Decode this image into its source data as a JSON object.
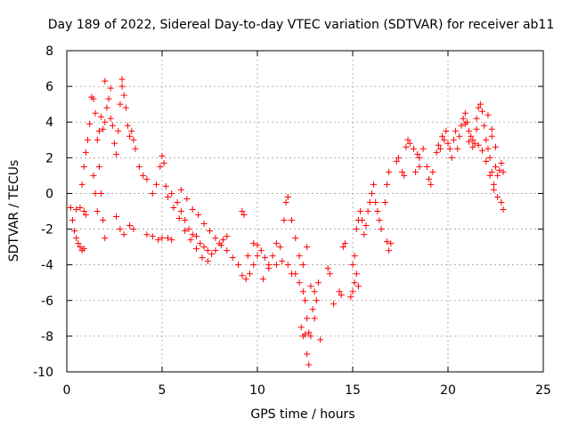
{
  "chart_data": {
    "type": "scatter",
    "title": "Day 189 of 2022, Sidereal Day-to-day VTEC variation (SDTVAR) for receiver ab11",
    "xlabel": "GPS time / hours",
    "ylabel": "SDTVAR / TECUs",
    "xlim": [
      0,
      25
    ],
    "ylim": [
      -10,
      8
    ],
    "xticks": [
      0,
      5,
      10,
      15,
      20,
      25
    ],
    "yticks": [
      -10,
      -8,
      -6,
      -4,
      -2,
      0,
      2,
      4,
      6,
      8
    ],
    "grid": true,
    "marker": "+",
    "series": [
      {
        "name": "SDTVAR",
        "color": "#ff0000",
        "points": [
          [
            0.2,
            -0.8
          ],
          [
            0.3,
            -1.5
          ],
          [
            0.4,
            -2.1
          ],
          [
            0.5,
            -2.5
          ],
          [
            0.6,
            -2.8
          ],
          [
            0.7,
            -3.0
          ],
          [
            0.8,
            -3.2
          ],
          [
            0.9,
            -3.1
          ],
          [
            0.5,
            -0.9
          ],
          [
            0.7,
            -0.8
          ],
          [
            0.9,
            -1.0
          ],
          [
            1.0,
            -1.2
          ],
          [
            0.8,
            0.5
          ],
          [
            0.9,
            1.5
          ],
          [
            1.0,
            2.3
          ],
          [
            1.1,
            3.0
          ],
          [
            1.2,
            3.9
          ],
          [
            1.3,
            5.4
          ],
          [
            1.4,
            5.3
          ],
          [
            1.5,
            4.5
          ],
          [
            1.6,
            3.0
          ],
          [
            1.7,
            1.5
          ],
          [
            1.8,
            0.0
          ],
          [
            1.9,
            -1.5
          ],
          [
            2.0,
            -2.5
          ],
          [
            1.4,
            1.0
          ],
          [
            1.5,
            0.0
          ],
          [
            1.6,
            -1.0
          ],
          [
            1.7,
            3.5
          ],
          [
            1.8,
            4.3
          ],
          [
            1.9,
            3.6
          ],
          [
            2.0,
            4.0
          ],
          [
            2.1,
            4.8
          ],
          [
            2.2,
            5.3
          ],
          [
            2.3,
            4.2
          ],
          [
            2.4,
            3.8
          ],
          [
            2.5,
            2.8
          ],
          [
            2.6,
            2.2
          ],
          [
            2.7,
            3.5
          ],
          [
            2.8,
            5.0
          ],
          [
            2.9,
            6.0
          ],
          [
            3.0,
            5.5
          ],
          [
            3.1,
            4.8
          ],
          [
            3.2,
            3.8
          ],
          [
            3.3,
            3.2
          ],
          [
            3.4,
            3.5
          ],
          [
            3.5,
            3.0
          ],
          [
            3.6,
            2.5
          ],
          [
            2.0,
            6.3
          ],
          [
            2.3,
            5.9
          ],
          [
            2.9,
            6.4
          ],
          [
            2.6,
            -1.3
          ],
          [
            2.8,
            -2.0
          ],
          [
            3.0,
            -2.3
          ],
          [
            3.3,
            -1.8
          ],
          [
            3.5,
            -2.0
          ],
          [
            3.8,
            1.5
          ],
          [
            4.0,
            1.0
          ],
          [
            4.2,
            0.8
          ],
          [
            4.5,
            0.0
          ],
          [
            4.7,
            0.5
          ],
          [
            4.9,
            1.5
          ],
          [
            5.0,
            2.1
          ],
          [
            5.1,
            1.7
          ],
          [
            4.2,
            -2.3
          ],
          [
            4.5,
            -2.4
          ],
          [
            4.8,
            -2.6
          ],
          [
            5.0,
            -2.5
          ],
          [
            5.3,
            -2.5
          ],
          [
            5.5,
            -2.6
          ],
          [
            5.2,
            0.4
          ],
          [
            5.5,
            0.0
          ],
          [
            5.8,
            -0.5
          ],
          [
            6.0,
            -1.0
          ],
          [
            6.2,
            -1.5
          ],
          [
            6.4,
            -2.0
          ],
          [
            6.6,
            -2.3
          ],
          [
            6.8,
            -2.4
          ],
          [
            7.0,
            -2.8
          ],
          [
            7.2,
            -3.0
          ],
          [
            7.4,
            -3.2
          ],
          [
            7.6,
            -3.4
          ],
          [
            7.8,
            -3.2
          ],
          [
            8.0,
            -2.8
          ],
          [
            8.2,
            -2.6
          ],
          [
            8.4,
            -2.4
          ],
          [
            5.3,
            -0.2
          ],
          [
            5.6,
            -0.8
          ],
          [
            5.9,
            -1.4
          ],
          [
            6.2,
            -2.1
          ],
          [
            6.5,
            -2.6
          ],
          [
            6.8,
            -3.1
          ],
          [
            7.1,
            -3.6
          ],
          [
            7.4,
            -3.8
          ],
          [
            6.0,
            0.2
          ],
          [
            6.3,
            -0.3
          ],
          [
            6.6,
            -0.9
          ],
          [
            6.9,
            -1.2
          ],
          [
            7.2,
            -1.7
          ],
          [
            7.5,
            -2.1
          ],
          [
            7.8,
            -2.5
          ],
          [
            8.1,
            -2.9
          ],
          [
            8.4,
            -3.2
          ],
          [
            8.7,
            -3.6
          ],
          [
            9.0,
            -4.0
          ],
          [
            9.2,
            -4.6
          ],
          [
            9.4,
            -4.8
          ],
          [
            9.6,
            -4.5
          ],
          [
            9.8,
            -4.0
          ],
          [
            10.0,
            -3.5
          ],
          [
            9.2,
            -1.0
          ],
          [
            9.3,
            -1.2
          ],
          [
            9.5,
            -3.5
          ],
          [
            9.8,
            -2.8
          ],
          [
            10.0,
            -2.9
          ],
          [
            10.2,
            -3.2
          ],
          [
            10.4,
            -3.6
          ],
          [
            10.6,
            -4.0
          ],
          [
            10.8,
            -3.5
          ],
          [
            11.0,
            -2.8
          ],
          [
            11.2,
            -3.0
          ],
          [
            11.4,
            -1.5
          ],
          [
            11.5,
            -0.5
          ],
          [
            11.6,
            -0.2
          ],
          [
            11.8,
            -1.5
          ],
          [
            12.0,
            -2.5
          ],
          [
            10.3,
            -4.8
          ],
          [
            10.6,
            -4.2
          ],
          [
            11.0,
            -4.0
          ],
          [
            11.3,
            -3.8
          ],
          [
            11.6,
            -4.0
          ],
          [
            11.8,
            -4.5
          ],
          [
            12.0,
            -4.5
          ],
          [
            12.2,
            -5.0
          ],
          [
            12.4,
            -5.5
          ],
          [
            12.5,
            -6.0
          ],
          [
            12.6,
            -7.0
          ],
          [
            12.7,
            -7.8
          ],
          [
            12.6,
            -9.0
          ],
          [
            12.7,
            -9.6
          ],
          [
            12.8,
            -8.0
          ],
          [
            12.9,
            -6.5
          ],
          [
            12.3,
            -7.5
          ],
          [
            12.4,
            -8.0
          ],
          [
            12.5,
            -7.9
          ],
          [
            13.0,
            -7.0
          ],
          [
            13.1,
            -6.0
          ],
          [
            13.2,
            -5.0
          ],
          [
            13.3,
            -8.2
          ],
          [
            12.2,
            -3.5
          ],
          [
            12.4,
            -4.0
          ],
          [
            12.6,
            -3.0
          ],
          [
            12.8,
            -5.2
          ],
          [
            13.0,
            -5.5
          ],
          [
            13.7,
            -4.2
          ],
          [
            13.8,
            -4.5
          ],
          [
            14.0,
            -6.2
          ],
          [
            14.3,
            -5.5
          ],
          [
            14.4,
            -5.7
          ],
          [
            14.5,
            -3.0
          ],
          [
            14.6,
            -2.8
          ],
          [
            14.9,
            -5.8
          ],
          [
            15.0,
            -5.5
          ],
          [
            15.1,
            -5.0
          ],
          [
            15.2,
            -4.5
          ],
          [
            15.3,
            -5.2
          ],
          [
            15.0,
            -4.0
          ],
          [
            15.1,
            -3.5
          ],
          [
            15.2,
            -2.0
          ],
          [
            15.3,
            -1.5
          ],
          [
            15.4,
            -1.0
          ],
          [
            15.5,
            -1.5
          ],
          [
            15.6,
            -2.3
          ],
          [
            15.7,
            -1.8
          ],
          [
            15.8,
            -1.0
          ],
          [
            15.9,
            -0.5
          ],
          [
            16.0,
            0.0
          ],
          [
            16.1,
            0.5
          ],
          [
            16.2,
            -0.5
          ],
          [
            16.3,
            -1.0
          ],
          [
            16.4,
            -1.5
          ],
          [
            16.5,
            -2.0
          ],
          [
            16.7,
            -0.5
          ],
          [
            16.8,
            0.5
          ],
          [
            16.9,
            1.2
          ],
          [
            16.8,
            -2.7
          ],
          [
            16.9,
            -3.2
          ],
          [
            17.0,
            -2.8
          ],
          [
            17.3,
            1.8
          ],
          [
            17.4,
            2.0
          ],
          [
            17.6,
            1.2
          ],
          [
            17.7,
            1.0
          ],
          [
            17.8,
            2.6
          ],
          [
            17.9,
            3.0
          ],
          [
            18.0,
            2.8
          ],
          [
            18.2,
            2.5
          ],
          [
            18.4,
            2.2
          ],
          [
            18.5,
            2.0
          ],
          [
            18.3,
            1.2
          ],
          [
            18.5,
            1.5
          ],
          [
            18.7,
            2.5
          ],
          [
            18.9,
            1.5
          ],
          [
            19.0,
            0.8
          ],
          [
            19.1,
            0.5
          ],
          [
            19.2,
            1.2
          ],
          [
            19.4,
            2.3
          ],
          [
            19.5,
            2.7
          ],
          [
            19.6,
            2.5
          ],
          [
            19.7,
            3.2
          ],
          [
            19.8,
            3.0
          ],
          [
            19.9,
            3.5
          ],
          [
            20.0,
            2.8
          ],
          [
            20.1,
            2.5
          ],
          [
            20.2,
            2.0
          ],
          [
            20.3,
            3.0
          ],
          [
            20.4,
            3.5
          ],
          [
            20.5,
            2.5
          ],
          [
            20.6,
            3.2
          ],
          [
            20.7,
            3.8
          ],
          [
            20.8,
            4.2
          ],
          [
            20.9,
            4.5
          ],
          [
            21.0,
            4.0
          ],
          [
            21.1,
            3.5
          ],
          [
            21.2,
            3.2
          ],
          [
            21.3,
            3.0
          ],
          [
            21.4,
            2.8
          ],
          [
            21.5,
            4.2
          ],
          [
            21.6,
            4.8
          ],
          [
            21.7,
            5.0
          ],
          [
            21.8,
            4.6
          ],
          [
            21.9,
            3.8
          ],
          [
            22.0,
            3.0
          ],
          [
            22.1,
            2.5
          ],
          [
            22.2,
            2.0
          ],
          [
            22.3,
            1.2
          ],
          [
            22.4,
            0.5
          ],
          [
            22.5,
            1.5
          ],
          [
            22.6,
            1.0
          ],
          [
            21.6,
            2.7
          ],
          [
            21.8,
            2.4
          ],
          [
            22.0,
            1.8
          ],
          [
            22.2,
            1.0
          ],
          [
            22.4,
            0.2
          ],
          [
            22.6,
            -0.2
          ],
          [
            22.8,
            -0.5
          ],
          [
            22.9,
            -0.9
          ],
          [
            22.7,
            1.3
          ],
          [
            22.8,
            1.7
          ],
          [
            22.9,
            1.2
          ],
          [
            20.9,
            3.9
          ],
          [
            21.1,
            2.9
          ],
          [
            21.3,
            2.6
          ],
          [
            21.5,
            3.6
          ],
          [
            22.3,
            3.6
          ],
          [
            22.5,
            2.6
          ],
          [
            22.1,
            4.4
          ],
          [
            22.3,
            3.2
          ]
        ]
      }
    ]
  }
}
